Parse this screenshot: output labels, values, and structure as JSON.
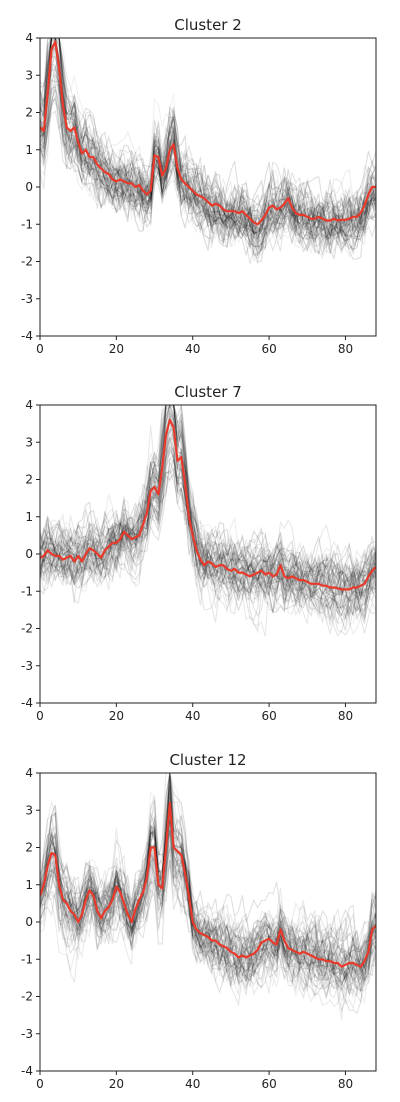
{
  "colors": {
    "background": "#ffffff",
    "axis": "#222222",
    "individual_traces": "#000000",
    "centroid": "#e8392a"
  },
  "chart_data": [
    {
      "type": "line",
      "title": "Cluster 2",
      "xlabel": "",
      "ylabel": "",
      "xlim": [
        0,
        88
      ],
      "ylim": [
        -4,
        4
      ],
      "xticks": [
        "0",
        "20",
        "40",
        "60",
        "80"
      ],
      "yticks": [
        "4",
        "3",
        "2",
        "1",
        "0",
        "-1",
        "-2",
        "-3",
        "-4"
      ],
      "grid": false,
      "legend": "none",
      "background_traces": "many faint grey/black lines, one per member series, concentrated around the centroid",
      "series": [
        {
          "x": [
            0,
            1,
            2,
            3,
            4,
            5,
            6,
            7,
            8,
            9,
            10,
            11,
            12,
            13,
            14,
            15,
            16,
            17,
            18,
            19,
            20,
            21,
            22,
            23,
            24,
            25,
            26,
            27,
            28,
            29,
            30,
            31,
            32,
            33,
            34,
            35,
            36,
            37,
            38,
            39,
            40,
            41,
            42,
            43,
            44,
            45,
            46,
            47,
            48,
            49,
            50,
            51,
            52,
            53,
            54,
            55,
            56,
            57,
            58,
            59,
            60,
            61,
            62,
            63,
            64,
            65,
            66,
            67,
            68,
            69,
            70,
            71,
            72,
            73,
            74,
            75,
            76,
            77,
            78,
            79,
            80,
            81,
            82,
            83,
            84,
            85,
            86,
            87,
            88
          ],
          "values": [
            1.6,
            1.5,
            2.5,
            3.7,
            3.9,
            3.2,
            2.2,
            1.6,
            1.5,
            1.6,
            1.2,
            0.9,
            1.0,
            0.8,
            0.8,
            0.6,
            0.5,
            0.4,
            0.35,
            0.2,
            0.15,
            0.2,
            0.15,
            0.1,
            0.1,
            0.0,
            0.05,
            -0.1,
            -0.2,
            -0.1,
            0.85,
            0.8,
            0.3,
            0.5,
            1.0,
            1.15,
            0.5,
            0.2,
            0.1,
            0.0,
            -0.1,
            -0.2,
            -0.25,
            -0.3,
            -0.4,
            -0.5,
            -0.45,
            -0.5,
            -0.6,
            -0.65,
            -0.65,
            -0.65,
            -0.7,
            -0.65,
            -0.75,
            -0.85,
            -0.95,
            -1.0,
            -0.9,
            -0.75,
            -0.55,
            -0.5,
            -0.6,
            -0.55,
            -0.45,
            -0.3,
            -0.55,
            -0.7,
            -0.75,
            -0.75,
            -0.8,
            -0.85,
            -0.85,
            -0.8,
            -0.85,
            -0.9,
            -0.9,
            -0.85,
            -0.9,
            -0.88,
            -0.88,
            -0.85,
            -0.8,
            -0.8,
            -0.7,
            -0.5,
            -0.2,
            0.0,
            0.0
          ]
        }
      ]
    },
    {
      "type": "line",
      "title": "Cluster 7",
      "xlabel": "",
      "ylabel": "",
      "xlim": [
        0,
        88
      ],
      "ylim": [
        -4,
        4
      ],
      "xticks": [
        "0",
        "20",
        "40",
        "60",
        "80"
      ],
      "yticks": [
        "4",
        "3",
        "2",
        "1",
        "0",
        "-1",
        "-2",
        "-3",
        "-4"
      ],
      "grid": false,
      "legend": "none",
      "background_traces": "many faint grey/black lines, one per member series, concentrated around the centroid",
      "series": [
        {
          "x": [
            0,
            1,
            2,
            3,
            4,
            5,
            6,
            7,
            8,
            9,
            10,
            11,
            12,
            13,
            14,
            15,
            16,
            17,
            18,
            19,
            20,
            21,
            22,
            23,
            24,
            25,
            26,
            27,
            28,
            29,
            30,
            31,
            32,
            33,
            34,
            35,
            36,
            37,
            38,
            39,
            40,
            41,
            42,
            43,
            44,
            45,
            46,
            47,
            48,
            49,
            50,
            51,
            52,
            53,
            54,
            55,
            56,
            57,
            58,
            59,
            60,
            61,
            62,
            63,
            64,
            65,
            66,
            67,
            68,
            69,
            70,
            71,
            72,
            73,
            74,
            75,
            76,
            77,
            78,
            79,
            80,
            81,
            82,
            83,
            84,
            85,
            86,
            87,
            88
          ],
          "values": [
            -0.1,
            -0.05,
            0.1,
            0.0,
            -0.05,
            -0.05,
            -0.15,
            -0.1,
            -0.05,
            -0.2,
            -0.05,
            -0.2,
            0.0,
            0.15,
            0.1,
            0.0,
            -0.1,
            0.1,
            0.2,
            0.3,
            0.3,
            0.4,
            0.6,
            0.5,
            0.4,
            0.45,
            0.5,
            0.8,
            1.1,
            1.7,
            1.8,
            1.6,
            2.3,
            3.2,
            3.6,
            3.4,
            2.5,
            2.6,
            1.9,
            1.0,
            0.5,
            0.1,
            -0.15,
            -0.3,
            -0.2,
            -0.25,
            -0.35,
            -0.3,
            -0.3,
            -0.4,
            -0.45,
            -0.4,
            -0.5,
            -0.5,
            -0.55,
            -0.6,
            -0.55,
            -0.5,
            -0.45,
            -0.55,
            -0.5,
            -0.6,
            -0.55,
            -0.3,
            -0.6,
            -0.65,
            -0.6,
            -0.65,
            -0.7,
            -0.7,
            -0.75,
            -0.8,
            -0.8,
            -0.8,
            -0.85,
            -0.85,
            -0.9,
            -0.9,
            -0.92,
            -0.95,
            -0.95,
            -0.95,
            -0.9,
            -0.9,
            -0.85,
            -0.8,
            -0.6,
            -0.45,
            -0.35
          ]
        }
      ]
    },
    {
      "type": "line",
      "title": "Cluster 12",
      "xlabel": "",
      "ylabel": "",
      "xlim": [
        0,
        88
      ],
      "ylim": [
        -4,
        4
      ],
      "xticks": [
        "0",
        "20",
        "40",
        "60",
        "80"
      ],
      "yticks": [
        "4",
        "3",
        "2",
        "1",
        "0",
        "-1",
        "-2",
        "-3",
        "-4"
      ],
      "grid": false,
      "legend": "none",
      "background_traces": "many faint grey/black lines, one per member series, concentrated around the centroid",
      "series": [
        {
          "x": [
            0,
            1,
            2,
            3,
            4,
            5,
            6,
            7,
            8,
            9,
            10,
            11,
            12,
            13,
            14,
            15,
            16,
            17,
            18,
            19,
            20,
            21,
            22,
            23,
            24,
            25,
            26,
            27,
            28,
            29,
            30,
            31,
            32,
            33,
            34,
            35,
            36,
            37,
            38,
            39,
            40,
            41,
            42,
            43,
            44,
            45,
            46,
            47,
            48,
            49,
            50,
            51,
            52,
            53,
            54,
            55,
            56,
            57,
            58,
            59,
            60,
            61,
            62,
            63,
            64,
            65,
            66,
            67,
            68,
            69,
            70,
            71,
            72,
            73,
            74,
            75,
            76,
            77,
            78,
            79,
            80,
            81,
            82,
            83,
            84,
            85,
            86,
            87,
            88
          ],
          "values": [
            0.7,
            1.0,
            1.5,
            1.85,
            1.8,
            1.0,
            0.6,
            0.5,
            0.3,
            0.2,
            0.0,
            0.2,
            0.6,
            0.85,
            0.7,
            0.3,
            0.1,
            0.3,
            0.4,
            0.6,
            0.95,
            0.8,
            0.5,
            0.2,
            0.0,
            0.35,
            0.6,
            0.8,
            1.2,
            2.0,
            2.0,
            1.0,
            0.9,
            2.0,
            3.2,
            2.0,
            1.9,
            1.8,
            1.3,
            0.7,
            0.0,
            -0.2,
            -0.3,
            -0.35,
            -0.4,
            -0.5,
            -0.5,
            -0.6,
            -0.65,
            -0.7,
            -0.8,
            -0.85,
            -0.95,
            -0.9,
            -0.95,
            -0.9,
            -0.85,
            -0.75,
            -0.55,
            -0.5,
            -0.45,
            -0.55,
            -0.6,
            -0.2,
            -0.5,
            -0.7,
            -0.75,
            -0.8,
            -0.85,
            -0.8,
            -0.85,
            -0.9,
            -0.95,
            -1.0,
            -1.0,
            -1.05,
            -1.05,
            -1.1,
            -1.1,
            -1.2,
            -1.15,
            -1.1,
            -1.1,
            -1.15,
            -1.2,
            -1.05,
            -0.8,
            -0.2,
            -0.1
          ]
        }
      ]
    }
  ]
}
